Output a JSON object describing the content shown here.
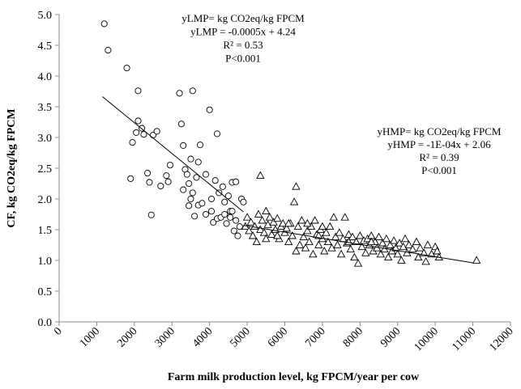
{
  "chart_data": {
    "type": "scatter",
    "x_label": "Farm milk production level, kg FPCM/year per cow",
    "y_label": "CF, kg CO2eq/kg FPCM",
    "xlim": [
      0,
      12000
    ],
    "ylim": [
      0,
      5
    ],
    "xticks": [
      0,
      1000,
      2000,
      3000,
      4000,
      5000,
      6000,
      7000,
      8000,
      9000,
      10000,
      11000,
      12000
    ],
    "yticks": [
      {
        "value": 0,
        "label": "0.0"
      },
      0.5,
      {
        "value": 1,
        "label": "1.0"
      },
      1.5,
      {
        "value": 2,
        "label": "2.0"
      },
      2.5,
      {
        "value": 3,
        "label": "3.0"
      },
      3.5,
      {
        "value": 4,
        "label": "4.0"
      },
      4.5,
      {
        "value": 5,
        "label": "5.0"
      }
    ],
    "grid": false,
    "series": [
      {
        "marker": "circle",
        "color": "#000000",
        "x": [
          1200,
          1300,
          1800,
          2100,
          1900,
          1950,
          2050,
          2100,
          2200,
          2250,
          2350,
          2400,
          2450,
          2500,
          2600,
          2700,
          2850,
          2900,
          2950,
          3200,
          3250,
          3300,
          3350,
          3400,
          3450,
          3500,
          3550,
          3550,
          3600,
          3650,
          3700,
          3750,
          3800,
          3900,
          4000,
          4050,
          4100,
          4150,
          4200,
          4200,
          4250,
          4300,
          4350,
          4400,
          4450,
          4500,
          4550,
          4600,
          4650,
          4700,
          4750,
          4800,
          4850,
          4900,
          3300,
          3500,
          3450,
          4050,
          4400,
          4600,
          3700,
          3900,
          4700,
          4550
        ],
        "values": [
          4.85,
          4.42,
          4.13,
          3.76,
          2.33,
          2.92,
          3.08,
          3.27,
          3.15,
          3.05,
          2.42,
          2.27,
          1.74,
          3.04,
          3.1,
          2.21,
          2.38,
          2.28,
          2.55,
          3.72,
          3.22,
          2.87,
          2.48,
          2.4,
          1.89,
          2.65,
          3.76,
          2.1,
          1.72,
          2.35,
          1.9,
          2.88,
          1.93,
          2.4,
          3.45,
          1.8,
          1.62,
          2.3,
          3.06,
          1.68,
          2.1,
          1.7,
          2.2,
          1.95,
          1.6,
          2.05,
          1.8,
          2.27,
          1.48,
          2.28,
          1.4,
          1.55,
          2.0,
          1.95,
          2.15,
          2.0,
          2.25,
          2.0,
          1.75,
          1.8,
          2.6,
          1.75,
          1.65,
          1.7
        ]
      },
      {
        "marker": "triangle",
        "color": "#000000",
        "x": [
          4950,
          5000,
          5050,
          5100,
          5150,
          5200,
          5250,
          5300,
          5350,
          5350,
          5400,
          5450,
          5500,
          5550,
          5600,
          5650,
          5700,
          5750,
          5800,
          5850,
          5900,
          5950,
          6000,
          6050,
          6100,
          6150,
          6200,
          6250,
          6300,
          6300,
          6350,
          6400,
          6450,
          6500,
          6550,
          6600,
          6650,
          6700,
          6750,
          6800,
          6850,
          6900,
          6950,
          7000,
          7050,
          7100,
          7150,
          7200,
          7250,
          7300,
          7350,
          7400,
          7450,
          7500,
          7550,
          7600,
          7650,
          7700,
          7750,
          7800,
          7850,
          7900,
          7950,
          8000,
          8050,
          8100,
          8150,
          8200,
          8250,
          8300,
          8350,
          8400,
          8450,
          8500,
          8550,
          8600,
          8650,
          8700,
          8750,
          8800,
          8850,
          8900,
          8950,
          9000,
          9050,
          9100,
          9150,
          9200,
          9250,
          9300,
          9400,
          9500,
          9550,
          9600,
          9700,
          9750,
          9800,
          9900,
          10000,
          10050,
          10100,
          11100,
          6100,
          6600,
          7000,
          5800,
          5500,
          6900,
          7700,
          8300
        ],
        "values": [
          1.55,
          1.7,
          1.48,
          1.62,
          1.4,
          1.55,
          1.3,
          1.75,
          2.38,
          1.5,
          1.65,
          1.45,
          1.8,
          1.58,
          1.7,
          1.42,
          1.62,
          1.5,
          1.68,
          1.35,
          1.55,
          1.6,
          1.45,
          1.52,
          1.3,
          1.6,
          1.4,
          1.95,
          2.2,
          1.15,
          1.55,
          1.25,
          1.65,
          1.38,
          1.2,
          1.48,
          1.3,
          1.55,
          1.1,
          1.65,
          1.42,
          1.25,
          1.5,
          1.35,
          1.15,
          1.45,
          1.3,
          1.55,
          1.2,
          1.7,
          1.38,
          1.25,
          1.45,
          1.1,
          1.35,
          1.7,
          1.28,
          1.42,
          1.18,
          1.38,
          1.05,
          1.3,
          0.95,
          1.4,
          1.22,
          1.32,
          1.12,
          1.35,
          1.25,
          1.4,
          1.15,
          1.3,
          1.2,
          1.38,
          1.1,
          1.28,
          1.18,
          1.35,
          1.05,
          1.25,
          1.15,
          1.32,
          1.2,
          1.1,
          1.28,
          1.0,
          1.22,
          1.35,
          1.12,
          1.25,
          1.18,
          1.3,
          1.05,
          1.2,
          1.12,
          0.98,
          1.25,
          1.1,
          1.22,
          1.15,
          1.05,
          1.0,
          1.6,
          1.6,
          1.55,
          1.4,
          1.35,
          1.4,
          1.3,
          1.3
        ]
      }
    ],
    "trendlines": [
      {
        "color": "#000000",
        "x": [
          1150,
          4900
        ],
        "y": [
          3.665,
          1.79
        ]
      },
      {
        "color": "#000000",
        "x": [
          4900,
          11000
        ],
        "y": [
          1.57,
          0.96
        ]
      }
    ],
    "annotations": [
      {
        "lines": [
          "yLMP= kg CO2eq/kg FPCM",
          "yLMP = -0.0005x + 4.24",
          "R² = 0.53",
          "P<0.001"
        ]
      },
      {
        "lines": [
          "yHMP= kg CO2eq/kg  FPCM",
          "yHMP = -1E-04x + 2.06",
          "R² = 0.39",
          "P<0.001"
        ]
      }
    ]
  }
}
